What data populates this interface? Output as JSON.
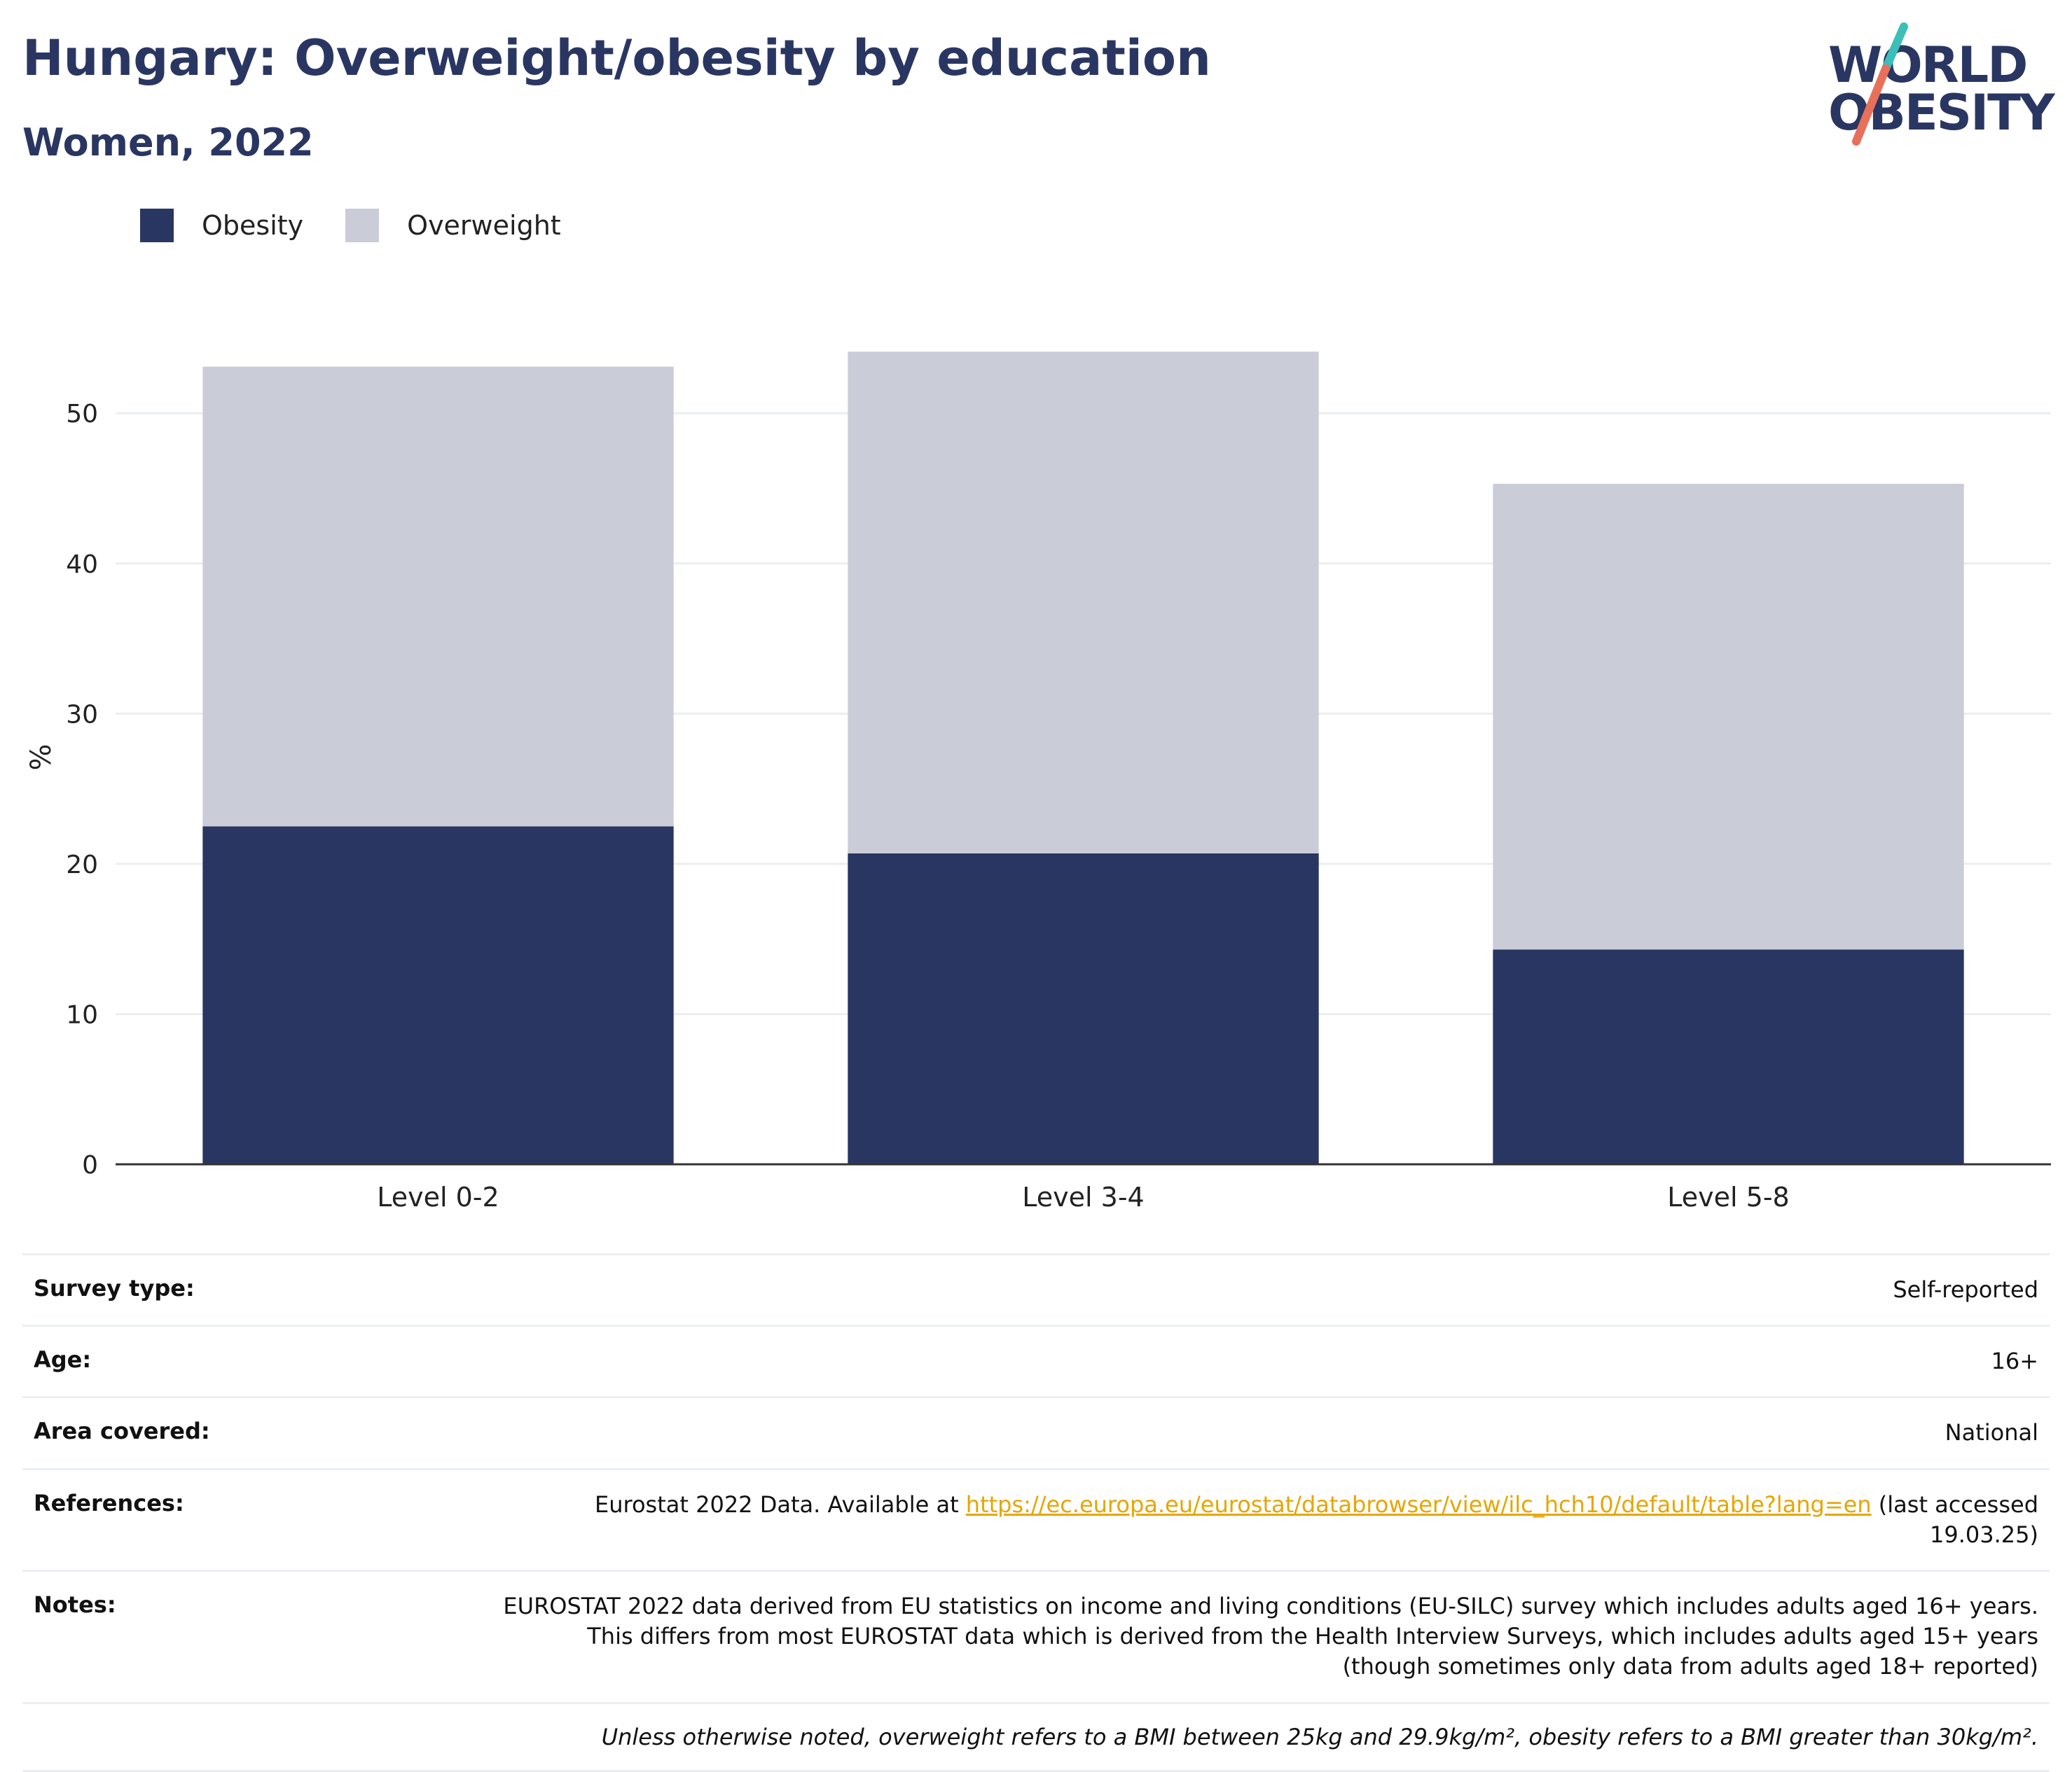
{
  "header": {
    "title": "Hungary: Overweight/obesity by education",
    "subtitle": "Women, 2022"
  },
  "logo": {
    "line1": "WORLD",
    "line2": "OBESITY"
  },
  "colors": {
    "obesity": "#2a3662",
    "overweight": "#cacdd8",
    "accent_teal": "#3bbfb8",
    "accent_coral": "#e8705a",
    "link": "#e6a600"
  },
  "legend": {
    "obesity": "Obesity",
    "overweight": "Overweight"
  },
  "chart_data": {
    "type": "bar",
    "stacked": true,
    "categories": [
      "Level 0-2",
      "Level 3-4",
      "Level 5-8"
    ],
    "series": [
      {
        "name": "Obesity",
        "values": [
          22.5,
          20.7,
          14.3
        ]
      },
      {
        "name": "Overweight",
        "values": [
          30.6,
          33.4,
          31.0
        ]
      }
    ],
    "ylabel": "%",
    "ylim": [
      0,
      57
    ],
    "yticks": [
      0,
      10,
      20,
      30,
      40,
      50
    ],
    "grid": true,
    "legend_position": "top-left"
  },
  "info": {
    "survey_type": {
      "key": "Survey type:",
      "value": "Self-reported"
    },
    "age": {
      "key": "Age:",
      "value": "16+"
    },
    "area": {
      "key": "Area covered:",
      "value": "National"
    },
    "references": {
      "key": "References:",
      "prefix": "Eurostat 2022 Data. Available at ",
      "link": "https://ec.europa.eu/eurostat/databrowser/view/ilc_hch10/default/table?lang=en",
      "suffix": " (last accessed 19.03.25)"
    },
    "notes": {
      "key": "Notes:",
      "value": "EUROSTAT 2022 data derived from EU statistics on income and living conditions (EU-SILC) survey which includes adults aged 16+ years. This differs from most EUROSTAT data which is derived from the Health Interview Surveys, which includes adults aged 15+ years (though sometimes only data from adults aged 18+ reported)"
    },
    "footnote": "Unless otherwise noted, overweight refers to a BMI between 25kg and 29.9kg/m², obesity refers to a BMI greater than 30kg/m²."
  }
}
